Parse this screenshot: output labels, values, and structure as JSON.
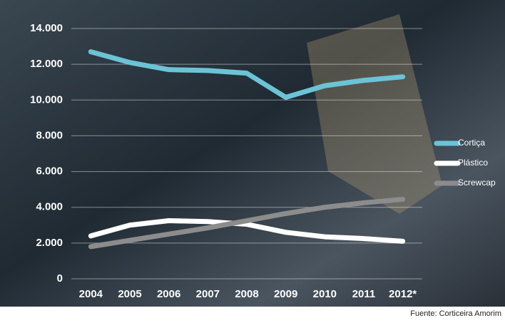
{
  "chart_data": {
    "type": "line",
    "categories": [
      "2004",
      "2005",
      "2006",
      "2007",
      "2008",
      "2009",
      "2010",
      "2011",
      "2012*"
    ],
    "series": [
      {
        "name": "Cortiça",
        "color": "#6cc3d6",
        "values": [
          12700,
          12100,
          11700,
          11650,
          11500,
          10150,
          10800,
          11100,
          11300
        ]
      },
      {
        "name": "Plástico",
        "color": "#ffffff",
        "values": [
          2400,
          3000,
          3250,
          3200,
          3050,
          2600,
          2350,
          2250,
          2100
        ]
      },
      {
        "name": "Screwcap",
        "color": "#8c8c8c",
        "values": [
          1800,
          2150,
          2500,
          2850,
          3250,
          3650,
          4000,
          4250,
          4450
        ]
      }
    ],
    "ylim": [
      0,
      14000
    ],
    "yticks": [
      0,
      {
        "value": 2000,
        "label": "2.000"
      },
      {
        "value": 4000,
        "label": "4.000"
      },
      {
        "value": 6000,
        "label": "6.000"
      },
      {
        "value": 8000,
        "label": "8.000"
      },
      {
        "value": 10000,
        "label": "10.000"
      },
      {
        "value": 12000,
        "label": "12.000"
      },
      {
        "value": 14000,
        "label": "14.000"
      }
    ],
    "grid": true,
    "legend": "right",
    "source": "Fuente: Corticeira Amorim"
  }
}
